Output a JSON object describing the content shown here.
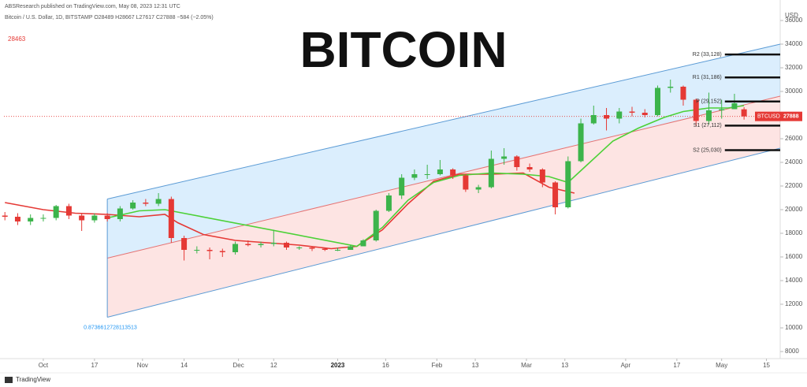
{
  "chart_data": {
    "type": "candlestick",
    "title": "BITCOIN",
    "header": "ABSResearch published on TradingView.com, May 08, 2023 12:31 UTC",
    "symbol_line": "Bitcoin / U.S. Dollar, 1D, BITSTAMP  O28489 H28667 L27617 C27888 −584 (−2.05%)",
    "side_value": "28463",
    "y_axis_label": "USD",
    "footer": "TradingView",
    "up_color": "#3cb44b",
    "down_color": "#e53935",
    "x": [
      -12,
      -8,
      -4,
      0,
      4,
      8,
      12,
      16,
      20,
      24,
      28,
      32,
      36,
      40,
      44,
      48,
      52,
      56,
      60,
      64,
      68,
      72,
      76,
      80,
      84,
      88,
      92,
      96,
      100,
      104,
      108,
      112,
      116,
      120,
      124,
      128,
      132,
      136,
      140,
      144,
      148,
      152,
      156,
      160,
      164,
      168,
      172,
      176,
      180,
      184,
      188,
      192,
      196,
      200,
      204,
      208,
      212,
      216,
      219
    ],
    "open": [
      19500,
      19400,
      19000,
      19300,
      19300,
      20300,
      19500,
      19100,
      19500,
      19200,
      20100,
      20600,
      20500,
      20900,
      17600,
      16600,
      16600,
      16500,
      16400,
      17100,
      17000,
      17100,
      17200,
      16800,
      16800,
      16700,
      16600,
      16600,
      16900,
      17400,
      19900,
      21200,
      22700,
      23000,
      23000,
      23400,
      22900,
      21700,
      21900,
      24300,
      24500,
      23600,
      23400,
      22300,
      20200,
      24100,
      27300,
      28000,
      27700,
      28300,
      28200,
      28000,
      30300,
      30400,
      29300,
      27500,
      28400,
      28500,
      28489
    ],
    "high": [
      19800,
      19700,
      19600,
      19600,
      20400,
      20500,
      19700,
      19700,
      19700,
      20300,
      20800,
      20900,
      21400,
      21100,
      17800,
      16900,
      16800,
      16700,
      17300,
      17400,
      17300,
      18300,
      17300,
      16900,
      16900,
      16800,
      16800,
      17000,
      17500,
      20000,
      21400,
      23000,
      23400,
      23800,
      24200,
      23500,
      23000,
      22100,
      25000,
      25200,
      24600,
      23900,
      23500,
      22400,
      24500,
      27700,
      28800,
      28600,
      28600,
      28700,
      28500,
      30500,
      31000,
      30500,
      29400,
      29900,
      29300,
      29800,
      28667
    ],
    "low": [
      19100,
      18700,
      18700,
      19000,
      19100,
      19200,
      18200,
      18900,
      19000,
      19000,
      20000,
      20300,
      20300,
      17200,
      15700,
      16300,
      15800,
      16000,
      16200,
      16900,
      16800,
      16900,
      16600,
      16600,
      16500,
      16500,
      16500,
      16600,
      16900,
      17300,
      19800,
      20900,
      22500,
      22600,
      22900,
      22600,
      21500,
      21400,
      21800,
      23800,
      23300,
      23200,
      21900,
      19600,
      20100,
      24000,
      27200,
      26700,
      27300,
      27900,
      27800,
      27900,
      29900,
      28800,
      27100,
      27200,
      27700,
      28600,
      27617
    ],
    "close": [
      19400,
      19000,
      19300,
      19300,
      20300,
      19500,
      19100,
      19500,
      19200,
      20100,
      20600,
      20500,
      20900,
      17600,
      16600,
      16600,
      16500,
      16400,
      17100,
      17000,
      17100,
      17200,
      16800,
      16800,
      16700,
      16600,
      16600,
      16900,
      17400,
      19900,
      21200,
      22700,
      23000,
      23000,
      23400,
      22900,
      21700,
      21900,
      24300,
      24500,
      23600,
      23400,
      22300,
      20200,
      24100,
      27300,
      28000,
      27700,
      28300,
      28200,
      28000,
      30300,
      30400,
      29300,
      27500,
      28400,
      28500,
      29000,
      27888
    ],
    "lines": [
      {
        "color": "#e53935",
        "x": [
          -12,
          0,
          10,
          20,
          30,
          38,
          42,
          50,
          60,
          70,
          80,
          90,
          98,
          106,
          114,
          122,
          130,
          140,
          150,
          158,
          166
        ],
        "values": [
          20600,
          20000,
          19700,
          19600,
          19400,
          19600,
          18900,
          17900,
          17400,
          17200,
          17000,
          16700,
          16900,
          18300,
          20500,
          22400,
          23000,
          23000,
          23100,
          21900,
          21400
        ]
      },
      {
        "color": "#4cd137",
        "x": [
          20,
          30,
          38,
          98,
          106,
          114,
          122,
          130,
          140,
          150,
          158,
          164,
          170,
          178,
          186,
          194,
          200,
          208,
          214,
          219
        ],
        "values": [
          19300,
          19900,
          20000,
          16900,
          18500,
          20800,
          22300,
          22900,
          23100,
          23000,
          22800,
          22300,
          23800,
          25800,
          26900,
          27800,
          28300,
          28600,
          28600,
          28800
        ]
      }
    ],
    "channel": {
      "x": [
        20,
        230.3
      ],
      "upper": [
        20900,
        34000
      ],
      "middle": [
        15900,
        29600
      ],
      "lower": [
        10900,
        25200
      ],
      "label": "0.8736612728113513"
    },
    "pivots": [
      {
        "label": "R2 (33,128)",
        "value": 33128
      },
      {
        "label": "R1 (31,186)",
        "value": 31186
      },
      {
        "label": "P (29,152)",
        "value": 29152
      },
      {
        "label": "S1 (27,112)",
        "value": 27112
      },
      {
        "label": "S2 (25,030)",
        "value": 25030
      }
    ],
    "pivot_start": 213,
    "last_price": 27888,
    "last_label": "BTCUSD",
    "xlim": [
      -12.3,
      230.3
    ],
    "ylim": [
      7400,
      36400
    ],
    "yticks": [
      8000,
      10000,
      12000,
      14000,
      16000,
      18000,
      20000,
      22000,
      24000,
      26000,
      28000,
      30000,
      32000,
      34000,
      36000
    ],
    "xticks": [
      {
        "value": 0,
        "label": "Oct"
      },
      {
        "value": 16,
        "label": "17"
      },
      {
        "value": 31,
        "label": "Nov"
      },
      {
        "value": 44,
        "label": "14"
      },
      {
        "value": 61,
        "label": "Dec"
      },
      {
        "value": 72,
        "label": "12"
      },
      {
        "value": 92,
        "label": "2023"
      },
      {
        "value": 107,
        "label": "16"
      },
      {
        "value": 123,
        "label": "Feb"
      },
      {
        "value": 135,
        "label": "13"
      },
      {
        "value": 151,
        "label": "Mar"
      },
      {
        "value": 163,
        "label": "13"
      },
      {
        "value": 182,
        "label": "Apr"
      },
      {
        "value": 198,
        "label": "17"
      },
      {
        "value": 212,
        "label": "May"
      },
      {
        "value": 226,
        "label": "15"
      }
    ]
  }
}
